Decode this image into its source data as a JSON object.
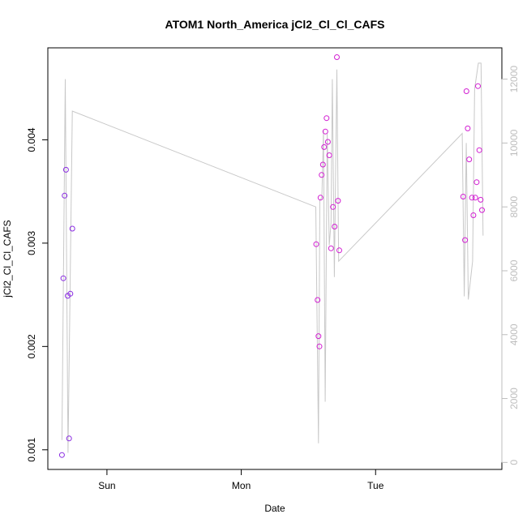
{
  "chart_data": {
    "type": "scatter",
    "title": "ATOM1 North_America jCl2_Cl_Cl_CAFS",
    "xlabel": "Date",
    "ylabel": "jCl2_Cl_Cl_CAFS",
    "x_unit": "days since Saturday 00:00",
    "x_ticks": [
      {
        "value": 1.0,
        "label": "Sun"
      },
      {
        "value": 2.0,
        "label": "Mon"
      },
      {
        "value": 3.0,
        "label": "Tue"
      }
    ],
    "xlim": [
      0.56,
      3.94
    ],
    "ylim_left": [
      0.00081,
      0.00489
    ],
    "yticks_left": [
      {
        "value": 0.001,
        "label": "0.001"
      },
      {
        "value": 0.002,
        "label": "0.002"
      },
      {
        "value": 0.003,
        "label": "0.003"
      },
      {
        "value": 0.004,
        "label": "0.004"
      }
    ],
    "ylim_right": [
      -220,
      12980
    ],
    "yticks_right": [
      {
        "value": 0,
        "label": "0"
      },
      {
        "value": 2000,
        "label": "2000"
      },
      {
        "value": 4000,
        "label": "4000"
      },
      {
        "value": 6000,
        "label": "6000"
      },
      {
        "value": 8000,
        "label": "8000"
      },
      {
        "value": 10000,
        "label": "10000"
      },
      {
        "value": 12000,
        "label": "12000"
      }
    ],
    "grid": false,
    "series": [
      {
        "kind": "points",
        "axis": "left",
        "points": [
          {
            "x": 0.665,
            "y": 0.00095,
            "color": "#8a2be2"
          },
          {
            "x": 0.675,
            "y": 0.00266,
            "color": "#8a2be2"
          },
          {
            "x": 0.685,
            "y": 0.00346,
            "color": "#8a2be2"
          },
          {
            "x": 0.695,
            "y": 0.00371,
            "color": "#8a2be2"
          },
          {
            "x": 0.708,
            "y": 0.00249,
            "color": "#8a2be2"
          },
          {
            "x": 0.718,
            "y": 0.00111,
            "color": "#8a2be2"
          },
          {
            "x": 0.728,
            "y": 0.00251,
            "color": "#8a2be2"
          },
          {
            "x": 0.742,
            "y": 0.00314,
            "color": "#8a2be2"
          },
          {
            "x": 2.558,
            "y": 0.00299,
            "color": "#d21ed2"
          },
          {
            "x": 2.568,
            "y": 0.00245,
            "color": "#d21ed2"
          },
          {
            "x": 2.575,
            "y": 0.0021,
            "color": "#d21ed2"
          },
          {
            "x": 2.582,
            "y": 0.002,
            "color": "#d21ed2"
          },
          {
            "x": 2.59,
            "y": 0.00344,
            "color": "#d21ed2"
          },
          {
            "x": 2.598,
            "y": 0.00366,
            "color": "#d21ed2"
          },
          {
            "x": 2.608,
            "y": 0.00376,
            "color": "#d21ed2"
          },
          {
            "x": 2.617,
            "y": 0.00393,
            "color": "#d21ed2"
          },
          {
            "x": 2.626,
            "y": 0.00408,
            "color": "#d21ed2"
          },
          {
            "x": 2.635,
            "y": 0.00421,
            "color": "#d21ed2"
          },
          {
            "x": 2.645,
            "y": 0.00398,
            "color": "#d21ed2"
          },
          {
            "x": 2.655,
            "y": 0.00385,
            "color": "#d21ed2"
          },
          {
            "x": 2.668,
            "y": 0.00295,
            "color": "#d21ed2"
          },
          {
            "x": 2.683,
            "y": 0.00335,
            "color": "#d21ed2"
          },
          {
            "x": 2.695,
            "y": 0.00316,
            "color": "#d21ed2"
          },
          {
            "x": 2.72,
            "y": 0.00341,
            "color": "#d21ed2"
          },
          {
            "x": 2.712,
            "y": 0.0048,
            "color": "#d21ed2"
          },
          {
            "x": 2.73,
            "y": 0.00293,
            "color": "#d21ed2"
          },
          {
            "x": 3.652,
            "y": 0.00345,
            "color": "#d21ed2"
          },
          {
            "x": 3.666,
            "y": 0.00303,
            "color": "#d21ed2"
          },
          {
            "x": 3.676,
            "y": 0.00447,
            "color": "#d21ed2"
          },
          {
            "x": 3.686,
            "y": 0.00411,
            "color": "#d21ed2"
          },
          {
            "x": 3.697,
            "y": 0.00381,
            "color": "#d21ed2"
          },
          {
            "x": 3.717,
            "y": 0.00344,
            "color": "#d21ed2"
          },
          {
            "x": 3.728,
            "y": 0.00327,
            "color": "#d21ed2"
          },
          {
            "x": 3.742,
            "y": 0.00344,
            "color": "#d21ed2"
          },
          {
            "x": 3.752,
            "y": 0.00359,
            "color": "#d21ed2"
          },
          {
            "x": 3.772,
            "y": 0.0039,
            "color": "#d21ed2"
          },
          {
            "x": 3.762,
            "y": 0.00452,
            "color": "#d21ed2"
          },
          {
            "x": 3.782,
            "y": 0.00342,
            "color": "#d21ed2"
          },
          {
            "x": 3.792,
            "y": 0.00332,
            "color": "#d21ed2"
          }
        ]
      },
      {
        "kind": "line",
        "axis": "right",
        "color": "#c8c8c8",
        "points": [
          {
            "x": 0.665,
            "y": 700
          },
          {
            "x": 0.69,
            "y": 12000
          },
          {
            "x": 0.71,
            "y": 300
          },
          {
            "x": 0.742,
            "y": 11000
          },
          {
            "x": 2.555,
            "y": 8000
          },
          {
            "x": 2.575,
            "y": 600
          },
          {
            "x": 2.585,
            "y": 8200
          },
          {
            "x": 2.6,
            "y": 8300
          },
          {
            "x": 2.612,
            "y": 10400
          },
          {
            "x": 2.625,
            "y": 1900
          },
          {
            "x": 2.64,
            "y": 10300
          },
          {
            "x": 2.655,
            "y": 6800
          },
          {
            "x": 2.668,
            "y": 7500
          },
          {
            "x": 2.678,
            "y": 12000
          },
          {
            "x": 2.693,
            "y": 5800
          },
          {
            "x": 2.712,
            "y": 12300
          },
          {
            "x": 2.725,
            "y": 6300
          },
          {
            "x": 3.645,
            "y": 10300
          },
          {
            "x": 3.66,
            "y": 5200
          },
          {
            "x": 3.675,
            "y": 10000
          },
          {
            "x": 3.69,
            "y": 5100
          },
          {
            "x": 3.722,
            "y": 6300
          },
          {
            "x": 3.737,
            "y": 11700
          },
          {
            "x": 3.765,
            "y": 12500
          },
          {
            "x": 3.785,
            "y": 12500
          },
          {
            "x": 3.8,
            "y": 7100
          }
        ]
      }
    ]
  }
}
